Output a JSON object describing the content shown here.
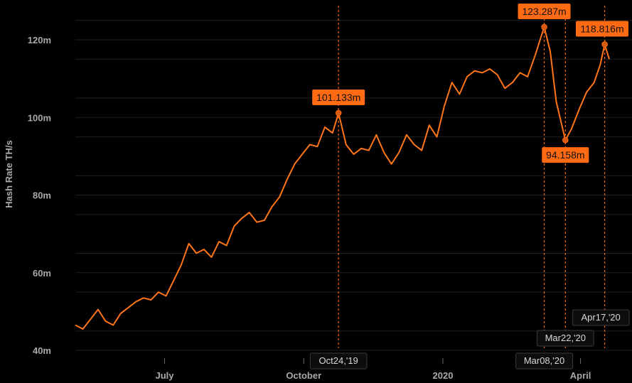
{
  "chart_data": {
    "type": "line",
    "ylabel": "Hash Rate TH/s",
    "xlabel": "",
    "ylim": [
      40,
      123
    ],
    "y_unit": "millions TH/s",
    "y_ticks": [
      {
        "value": 40,
        "label": "40m"
      },
      {
        "value": 60,
        "label": "60m"
      },
      {
        "value": 80,
        "label": "80m"
      },
      {
        "value": 100,
        "label": "100m"
      },
      {
        "value": 120,
        "label": "120m"
      }
    ],
    "x_range": [
      "2019-05-03",
      "2020-04-20"
    ],
    "x_ticks": [
      {
        "date": "2019-07-01",
        "label": "July"
      },
      {
        "date": "2019-10-01",
        "label": "October"
      },
      {
        "date": "2020-01-01",
        "label": "2020"
      },
      {
        "date": "2020-04-01",
        "label": "April"
      }
    ],
    "grid": true,
    "line_color": "#ff7518",
    "accent_color": "#ff6a13",
    "series": [
      {
        "points": [
          [
            "2019-05-03",
            46.5
          ],
          [
            "2019-05-08",
            45.5
          ],
          [
            "2019-05-13",
            48.0
          ],
          [
            "2019-05-18",
            50.5
          ],
          [
            "2019-05-23",
            47.5
          ],
          [
            "2019-05-28",
            46.5
          ],
          [
            "2019-06-02",
            49.5
          ],
          [
            "2019-06-07",
            51.0
          ],
          [
            "2019-06-12",
            52.5
          ],
          [
            "2019-06-17",
            53.5
          ],
          [
            "2019-06-22",
            53.0
          ],
          [
            "2019-06-27",
            55.0
          ],
          [
            "2019-07-02",
            54.0
          ],
          [
            "2019-07-07",
            58.0
          ],
          [
            "2019-07-12",
            62.0
          ],
          [
            "2019-07-17",
            67.5
          ],
          [
            "2019-07-22",
            65.0
          ],
          [
            "2019-07-27",
            66.0
          ],
          [
            "2019-08-01",
            64.0
          ],
          [
            "2019-08-06",
            68.0
          ],
          [
            "2019-08-11",
            67.0
          ],
          [
            "2019-08-16",
            72.0
          ],
          [
            "2019-08-21",
            74.0
          ],
          [
            "2019-08-26",
            75.5
          ],
          [
            "2019-08-31",
            73.0
          ],
          [
            "2019-09-05",
            73.5
          ],
          [
            "2019-09-10",
            77.0
          ],
          [
            "2019-09-15",
            79.5
          ],
          [
            "2019-09-20",
            84.0
          ],
          [
            "2019-09-25",
            88.0
          ],
          [
            "2019-09-30",
            90.5
          ],
          [
            "2019-10-05",
            93.0
          ],
          [
            "2019-10-10",
            92.5
          ],
          [
            "2019-10-15",
            97.5
          ],
          [
            "2019-10-20",
            96.0
          ],
          [
            "2019-10-24",
            101.133
          ],
          [
            "2019-10-29",
            93.0
          ],
          [
            "2019-11-03",
            90.5
          ],
          [
            "2019-11-08",
            92.0
          ],
          [
            "2019-11-13",
            91.5
          ],
          [
            "2019-11-18",
            95.5
          ],
          [
            "2019-11-23",
            91.0
          ],
          [
            "2019-11-28",
            88.0
          ],
          [
            "2019-12-03",
            91.0
          ],
          [
            "2019-12-08",
            95.5
          ],
          [
            "2019-12-13",
            93.0
          ],
          [
            "2019-12-18",
            91.5
          ],
          [
            "2019-12-23",
            98.0
          ],
          [
            "2019-12-28",
            95.0
          ],
          [
            "2020-01-02",
            103.0
          ],
          [
            "2020-01-07",
            109.0
          ],
          [
            "2020-01-12",
            106.0
          ],
          [
            "2020-01-17",
            110.5
          ],
          [
            "2020-01-22",
            112.0
          ],
          [
            "2020-01-27",
            111.5
          ],
          [
            "2020-02-01",
            112.5
          ],
          [
            "2020-02-06",
            111.0
          ],
          [
            "2020-02-11",
            107.5
          ],
          [
            "2020-02-16",
            109.0
          ],
          [
            "2020-02-21",
            111.5
          ],
          [
            "2020-02-26",
            110.5
          ],
          [
            "2020-03-02",
            116.0
          ],
          [
            "2020-03-08",
            123.287
          ],
          [
            "2020-03-12",
            117.0
          ],
          [
            "2020-03-16",
            104.0
          ],
          [
            "2020-03-22",
            94.158
          ],
          [
            "2020-03-26",
            97.0
          ],
          [
            "2020-03-31",
            102.0
          ],
          [
            "2020-04-05",
            106.5
          ],
          [
            "2020-04-10",
            109.0
          ],
          [
            "2020-04-14",
            113.5
          ],
          [
            "2020-04-17",
            118.816
          ],
          [
            "2020-04-20",
            115.0
          ]
        ]
      }
    ],
    "annotations": [
      {
        "date": "2019-10-24",
        "value": 101.133,
        "value_label": "101.133m",
        "date_label": "Oct24,'19",
        "callout_side": "above"
      },
      {
        "date": "2020-03-08",
        "value": 123.287,
        "value_label": "123.287m",
        "date_label": "Mar08,'20",
        "callout_side": "above"
      },
      {
        "date": "2020-03-22",
        "value": 94.158,
        "value_label": "94.158m",
        "date_label": "Mar22,'20",
        "callout_side": "below"
      },
      {
        "date": "2020-04-17",
        "value": 118.816,
        "value_label": "118.816m",
        "date_label": "Apr17,'20",
        "callout_side": "above"
      }
    ]
  }
}
